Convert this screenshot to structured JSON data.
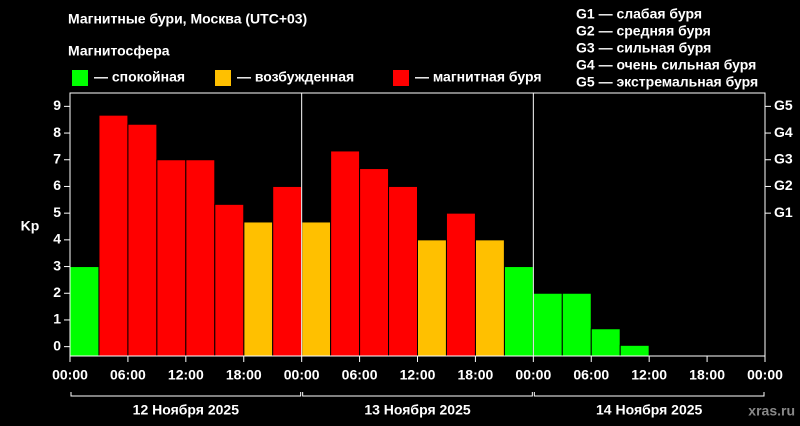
{
  "chart_data": {
    "type": "bar",
    "title": "Магнитные бури, Москва (UTC+03)",
    "subtitle": "Магнитосфера",
    "y_label": "Kp",
    "watermark": "xras.ru",
    "g_scale": [
      "G1 — слабая буря",
      "G2 — средняя буря",
      "G3 — сильная буря",
      "G4 — очень сильная буря",
      "G5 — экстремальная буря"
    ],
    "x": [
      0,
      3,
      6,
      9,
      12,
      15,
      18,
      21,
      24,
      27,
      30,
      33,
      36,
      39,
      42,
      45,
      48,
      51,
      54,
      57,
      60,
      63,
      66,
      69
    ],
    "bar_width": 3,
    "series": [
      {
        "name": "— спокойная",
        "color": "#00ff00",
        "values": [
          3,
          null,
          null,
          null,
          null,
          null,
          null,
          null,
          null,
          null,
          null,
          null,
          null,
          null,
          null,
          3,
          2,
          2,
          0.67,
          0.05,
          null,
          null,
          null,
          null
        ]
      },
      {
        "name": "— возбужденная",
        "color": "#ffc000",
        "values": [
          null,
          null,
          null,
          null,
          null,
          null,
          4.67,
          null,
          4.67,
          null,
          null,
          null,
          4,
          null,
          4,
          null,
          null,
          null,
          null,
          null,
          null,
          null,
          null,
          null
        ]
      },
      {
        "name": "— магнитная буря",
        "color": "#ff0000",
        "values": [
          null,
          8.67,
          8.33,
          7,
          7,
          5.33,
          null,
          6,
          null,
          7.33,
          6.67,
          6,
          null,
          5,
          null,
          null,
          null,
          null,
          null,
          null,
          null,
          null,
          null,
          null
        ]
      }
    ],
    "xlim": [
      0,
      72
    ],
    "xticks": [
      {
        "value": 0,
        "label": "00:00"
      },
      {
        "value": 6,
        "label": "06:00"
      },
      {
        "value": 12,
        "label": "12:00"
      },
      {
        "value": 18,
        "label": "18:00"
      },
      {
        "value": 24,
        "label": "00:00"
      },
      {
        "value": 30,
        "label": "06:00"
      },
      {
        "value": 36,
        "label": "12:00"
      },
      {
        "value": 42,
        "label": "18:00"
      },
      {
        "value": 48,
        "label": "00:00"
      },
      {
        "value": 54,
        "label": "06:00"
      },
      {
        "value": 60,
        "label": "12:00"
      },
      {
        "value": 66,
        "label": "18:00"
      },
      {
        "value": 72,
        "label": "00:00"
      }
    ],
    "day_labels": [
      {
        "start": 0,
        "end": 24,
        "label": "12 Ноября 2025"
      },
      {
        "start": 24,
        "end": 48,
        "label": "13 Ноября 2025"
      },
      {
        "start": 48,
        "end": 72,
        "label": "14 Ноября 2025"
      }
    ],
    "ylim": [
      -0.35,
      9.5
    ],
    "yticks": [
      0,
      1,
      2,
      3,
      4,
      5,
      6,
      7,
      8,
      9
    ],
    "y2lim": [
      -0.35,
      9.5
    ],
    "y2ticks": [
      {
        "value": 5,
        "label": "G1"
      },
      {
        "value": 6,
        "label": "G2"
      },
      {
        "value": 7,
        "label": "G3"
      },
      {
        "value": 8,
        "label": "G4"
      },
      {
        "value": 9,
        "label": "G5"
      }
    ]
  }
}
